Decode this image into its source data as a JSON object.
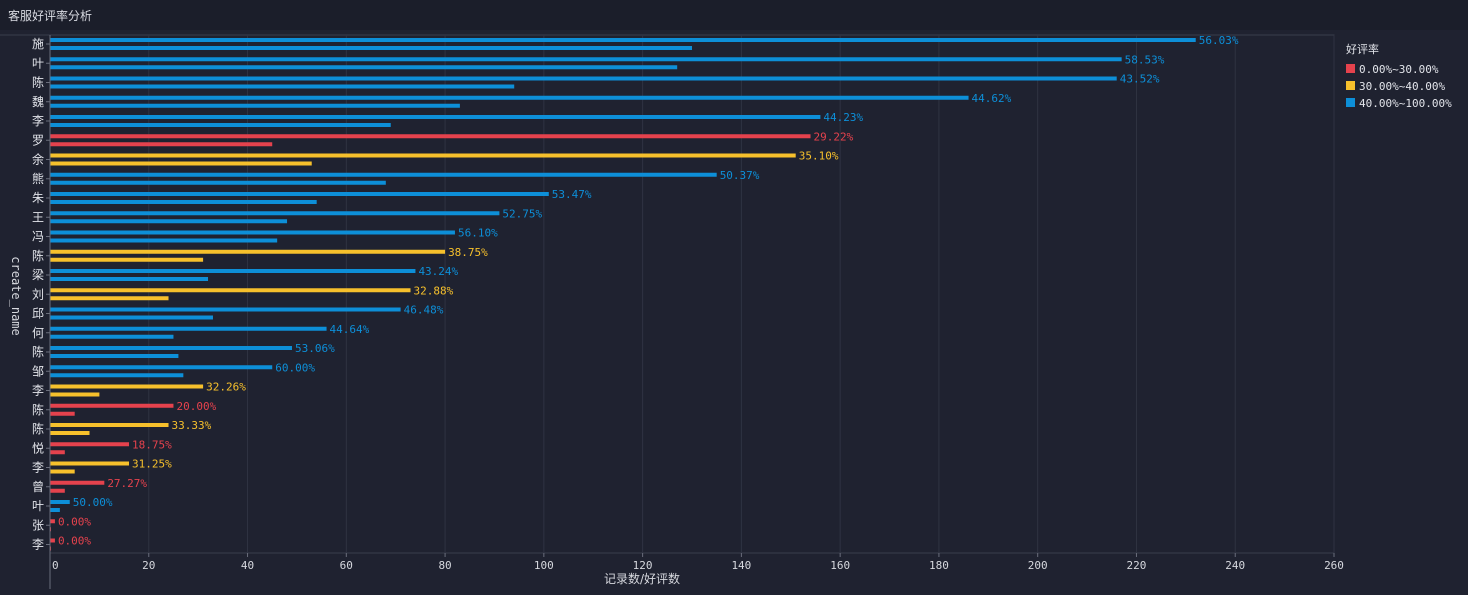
{
  "header": {
    "title": "客服好评率分析"
  },
  "chart_data": {
    "type": "bar",
    "orientation": "horizontal",
    "xlabel": "记录数/好评数",
    "ylabel": "create_name",
    "xlim": [
      0,
      260
    ],
    "x_ticks": [
      0,
      20,
      40,
      60,
      80,
      100,
      120,
      140,
      160,
      180,
      200,
      220,
      240,
      260
    ],
    "grid": true,
    "legend_position": "top-right",
    "legend": {
      "title": "好评率",
      "entries": [
        {
          "label": "0.00%~30.00%",
          "color": "#e5424d"
        },
        {
          "label": "30.00%~40.00%",
          "color": "#f6c02c"
        },
        {
          "label": "40.00%~100.00%",
          "color": "#0d8fd8"
        }
      ]
    },
    "series_order": [
      "记录数",
      "好评数"
    ],
    "categories": [
      "施",
      "叶",
      "陈",
      "魏",
      "李",
      "罗",
      "余",
      "熊",
      "朱",
      "王",
      "冯",
      "陈",
      "梁",
      "刘",
      "邱",
      "何",
      "陈",
      "邹",
      "李",
      "陈",
      "陈",
      "悦",
      "李",
      "曾",
      "叶",
      "张",
      "李"
    ],
    "records": [
      232,
      217,
      216,
      186,
      156,
      154,
      151,
      135,
      101,
      91,
      82,
      80,
      74,
      73,
      71,
      56,
      49,
      45,
      31,
      25,
      24,
      16,
      16,
      11,
      4,
      1,
      1
    ],
    "positives": [
      130,
      127,
      94,
      83,
      69,
      45,
      53,
      68,
      54,
      48,
      46,
      31,
      32,
      24,
      33,
      25,
      26,
      27,
      10,
      5,
      8,
      3,
      5,
      3,
      2,
      0,
      0
    ],
    "rate_labels": [
      "56.03%",
      "58.53%",
      "43.52%",
      "44.62%",
      "44.23%",
      "29.22%",
      "35.10%",
      "50.37%",
      "53.47%",
      "52.75%",
      "56.10%",
      "38.75%",
      "43.24%",
      "32.88%",
      "46.48%",
      "44.64%",
      "53.06%",
      "60.00%",
      "32.26%",
      "20.00%",
      "33.33%",
      "18.75%",
      "31.25%",
      "27.27%",
      "50.00%",
      "0.00%",
      "0.00%"
    ],
    "rate_band": [
      2,
      2,
      2,
      2,
      2,
      0,
      1,
      2,
      2,
      2,
      2,
      1,
      2,
      1,
      2,
      2,
      2,
      2,
      1,
      0,
      1,
      0,
      1,
      0,
      2,
      0,
      0
    ]
  }
}
